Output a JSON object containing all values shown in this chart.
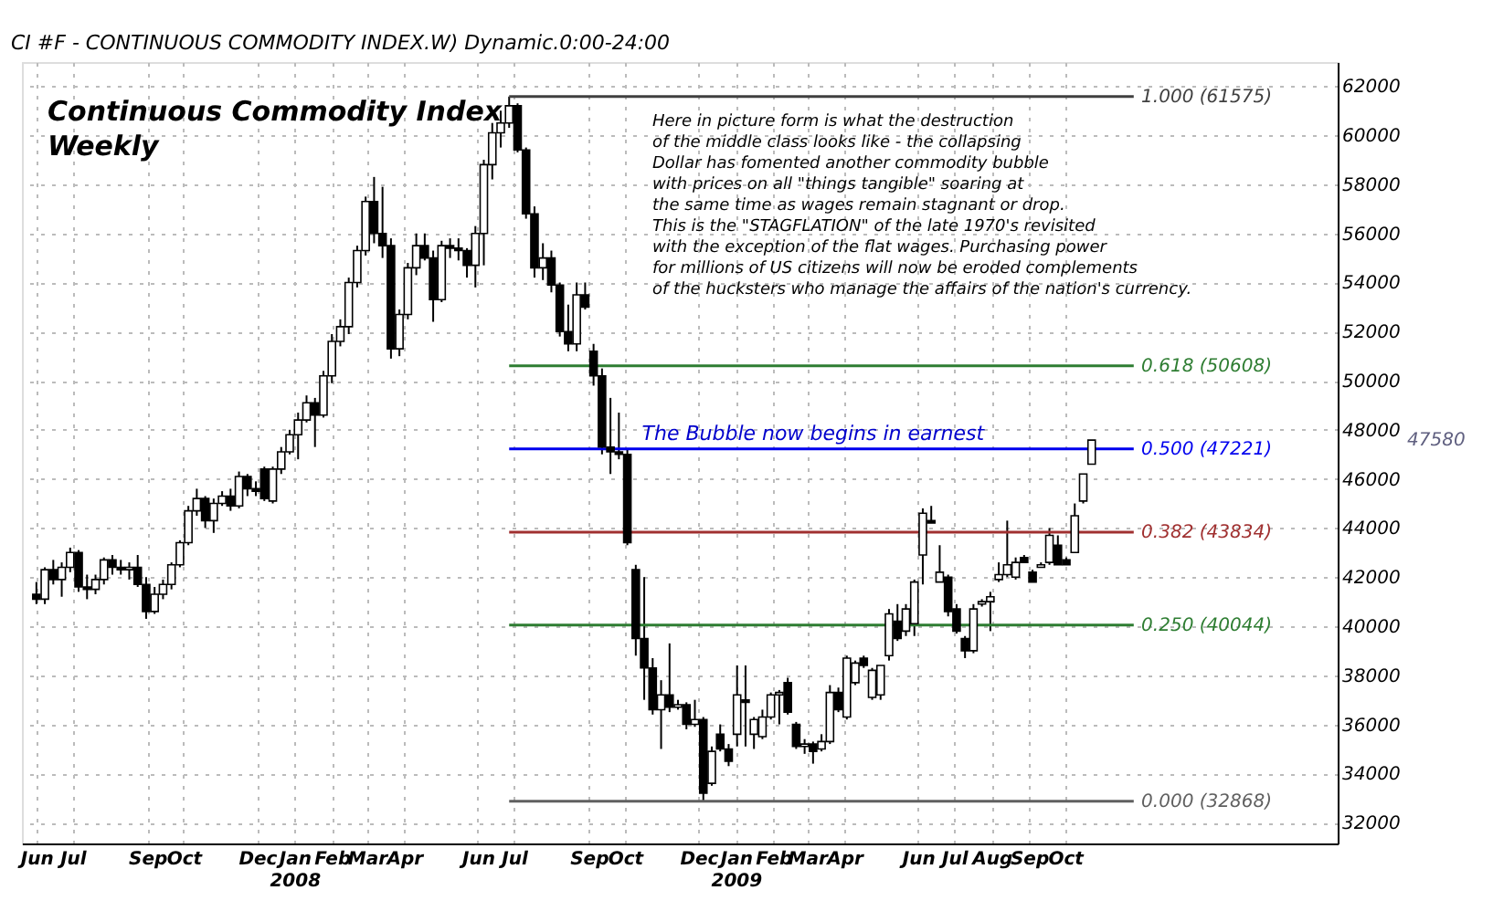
{
  "chart_data": {
    "type": "candlestick",
    "title": "Continuous Commodity Index",
    "subtitle": "Weekly",
    "x": [
      "2007-06-01",
      "2007-06-08",
      "2007-06-15",
      "2007-06-22",
      "2007-06-29",
      "2007-07-06",
      "2007-07-13",
      "2007-07-20",
      "2007-07-27",
      "2007-08-03",
      "2007-08-10",
      "2007-08-17",
      "2007-08-24",
      "2007-08-31",
      "2007-09-07",
      "2007-09-14",
      "2007-09-21",
      "2007-09-28",
      "2007-10-05",
      "2007-10-12",
      "2007-10-19",
      "2007-10-26",
      "2007-11-02",
      "2007-11-09",
      "2007-11-16",
      "2007-11-23",
      "2007-11-30",
      "2007-12-07",
      "2007-12-14",
      "2007-12-21",
      "2007-12-28",
      "2008-01-04",
      "2008-01-11",
      "2008-01-18",
      "2008-01-25",
      "2008-02-01",
      "2008-02-08",
      "2008-02-15",
      "2008-02-22",
      "2008-02-29",
      "2008-03-07",
      "2008-03-14",
      "2008-03-21",
      "2008-03-28",
      "2008-04-04",
      "2008-04-11",
      "2008-04-18",
      "2008-04-25",
      "2008-05-02",
      "2008-05-09",
      "2008-05-16",
      "2008-05-23",
      "2008-05-30",
      "2008-06-06",
      "2008-06-13",
      "2008-06-20",
      "2008-06-27",
      "2008-07-04",
      "2008-07-11",
      "2008-07-18",
      "2008-07-25",
      "2008-08-01",
      "2008-08-08",
      "2008-08-15",
      "2008-08-22",
      "2008-08-29",
      "2008-09-05",
      "2008-09-12",
      "2008-09-19",
      "2008-09-26",
      "2008-10-03",
      "2008-10-10",
      "2008-10-17",
      "2008-10-24",
      "2008-10-31",
      "2008-11-07",
      "2008-11-14",
      "2008-11-21",
      "2008-11-28",
      "2008-12-05",
      "2008-12-12",
      "2008-12-19",
      "2008-12-26",
      "2009-01-02",
      "2009-01-09",
      "2009-01-16",
      "2009-01-23",
      "2009-01-30",
      "2009-02-06",
      "2009-02-13",
      "2009-02-20",
      "2009-02-27",
      "2009-03-06",
      "2009-03-13",
      "2009-03-20",
      "2009-03-27",
      "2009-04-03",
      "2009-04-10",
      "2009-04-17",
      "2009-04-24",
      "2009-05-01",
      "2009-05-08",
      "2009-05-15",
      "2009-05-22",
      "2009-05-29",
      "2009-06-05",
      "2009-06-12",
      "2009-06-19",
      "2009-06-26",
      "2009-07-03",
      "2009-07-10",
      "2009-07-17",
      "2009-07-24",
      "2009-07-31",
      "2009-08-07",
      "2009-08-14",
      "2009-08-21",
      "2009-08-28",
      "2009-09-04",
      "2009-09-11",
      "2009-09-18",
      "2009-09-25",
      "2009-10-02",
      "2009-10-09",
      "2009-10-16",
      "2009-10-23"
    ],
    "ohlc": [
      [
        41300,
        41800,
        40900,
        41100
      ],
      [
        41100,
        42400,
        40900,
        42300
      ],
      [
        42300,
        42700,
        41700,
        41900
      ],
      [
        41900,
        42600,
        41200,
        42400
      ],
      [
        42400,
        43200,
        42200,
        43000
      ],
      [
        43000,
        43100,
        41400,
        41600
      ],
      [
        41600,
        42100,
        41100,
        41500
      ],
      [
        41500,
        42100,
        41300,
        41900
      ],
      [
        41900,
        42800,
        41700,
        42700
      ],
      [
        42700,
        42900,
        42100,
        42400
      ],
      [
        42400,
        42700,
        42100,
        42300
      ],
      [
        42300,
        42600,
        41900,
        42400
      ],
      [
        42400,
        42900,
        41600,
        41700
      ],
      [
        41700,
        42000,
        40300,
        40600
      ],
      [
        40600,
        41600,
        40500,
        41300
      ],
      [
        41300,
        41900,
        41100,
        41700
      ],
      [
        41700,
        42600,
        41500,
        42500
      ],
      [
        42500,
        43500,
        42400,
        43400
      ],
      [
        43400,
        44900,
        43300,
        44700
      ],
      [
        44700,
        45600,
        44500,
        45200
      ],
      [
        45200,
        45300,
        44000,
        44300
      ],
      [
        44300,
        45200,
        43800,
        45000
      ],
      [
        45000,
        45500,
        44900,
        45300
      ],
      [
        45300,
        45600,
        44700,
        44900
      ],
      [
        44900,
        46300,
        44800,
        46100
      ],
      [
        46100,
        46200,
        45300,
        45600
      ],
      [
        45600,
        45900,
        45300,
        45500
      ],
      [
        46400,
        46500,
        45100,
        45200
      ],
      [
        45100,
        46500,
        45000,
        46400
      ],
      [
        46400,
        47300,
        46200,
        47100
      ],
      [
        47100,
        48000,
        47000,
        47800
      ],
      [
        47800,
        48700,
        46800,
        48400
      ],
      [
        48400,
        49400,
        48300,
        49100
      ],
      [
        49100,
        49300,
        47300,
        48600
      ],
      [
        48600,
        50400,
        48500,
        50200
      ],
      [
        50200,
        51900,
        49900,
        51600
      ],
      [
        51600,
        52500,
        51400,
        52200
      ],
      [
        52200,
        54200,
        51900,
        54000
      ],
      [
        54000,
        55500,
        53800,
        55300
      ],
      [
        55300,
        57500,
        55100,
        57300
      ],
      [
        57300,
        58300,
        55600,
        56000
      ],
      [
        56000,
        57900,
        55000,
        55500
      ],
      [
        55500,
        55800,
        50900,
        51300
      ],
      [
        51300,
        52900,
        51000,
        52700
      ],
      [
        52700,
        54800,
        52500,
        54600
      ],
      [
        54600,
        56000,
        54300,
        55500
      ],
      [
        55500,
        56000,
        54900,
        55000
      ],
      [
        55000,
        55300,
        52400,
        53300
      ],
      [
        53300,
        55700,
        53200,
        55500
      ],
      [
        55500,
        55800,
        55000,
        55400
      ],
      [
        55400,
        55800,
        54900,
        55300
      ],
      [
        55300,
        55400,
        54200,
        54700
      ],
      [
        54700,
        56300,
        53800,
        56000
      ],
      [
        56000,
        59000,
        54700,
        58800
      ],
      [
        58800,
        60500,
        58200,
        60100
      ],
      [
        60100,
        61000,
        59500,
        60500
      ],
      [
        60500,
        61575,
        60300,
        61200
      ],
      [
        61200,
        61300,
        59300,
        59400
      ],
      [
        59400,
        59500,
        56600,
        56800
      ],
      [
        56800,
        57100,
        54200,
        54600
      ],
      [
        54600,
        55600,
        54100,
        55000
      ],
      [
        55000,
        55300,
        53600,
        53900
      ],
      [
        53900,
        54000,
        51800,
        52000
      ],
      [
        52000,
        53100,
        51200,
        51500
      ],
      [
        51500,
        54000,
        51200,
        53500
      ],
      [
        53500,
        54000,
        52900,
        53000
      ],
      [
        51200,
        51500,
        49800,
        50200
      ],
      [
        50200,
        50500,
        47000,
        47300
      ],
      [
        47300,
        49300,
        46200,
        47100
      ],
      [
        47100,
        48700,
        46800,
        47000
      ],
      [
        47000,
        47200,
        43300,
        43400
      ],
      [
        42300,
        42500,
        38800,
        39500
      ],
      [
        39500,
        42000,
        37000,
        38300
      ],
      [
        38300,
        38700,
        36400,
        36600
      ],
      [
        36600,
        37800,
        35000,
        37200
      ],
      [
        37200,
        39300,
        36500,
        36700
      ],
      [
        36700,
        37000,
        36600,
        36800
      ],
      [
        36800,
        36900,
        35800,
        36000
      ],
      [
        36000,
        37000,
        35900,
        36200
      ],
      [
        36200,
        36300,
        32868,
        33200
      ],
      [
        33600,
        35100,
        33500,
        34900
      ],
      [
        35600,
        36000,
        34900,
        35000
      ],
      [
        35000,
        35200,
        34300,
        34500
      ],
      [
        35600,
        38400,
        35100,
        37200
      ],
      [
        37000,
        38400,
        35100,
        36900
      ],
      [
        35600,
        36300,
        35000,
        36200
      ],
      [
        35500,
        36600,
        35400,
        36300
      ],
      [
        36300,
        37300,
        36200,
        37200
      ],
      [
        37200,
        37400,
        36000,
        37300
      ],
      [
        37700,
        37900,
        36400,
        36500
      ],
      [
        36000,
        36100,
        35000,
        35100
      ],
      [
        35100,
        35400,
        34800,
        35200
      ],
      [
        35200,
        35300,
        34400,
        34900
      ],
      [
        35000,
        35600,
        34900,
        35300
      ],
      [
        35300,
        37600,
        35200,
        37300
      ],
      [
        37300,
        37500,
        36500,
        36600
      ],
      [
        36300,
        38800,
        36200,
        38700
      ],
      [
        37700,
        38600,
        37600,
        38500
      ],
      [
        38700,
        38800,
        38300,
        38400
      ],
      [
        37100,
        38300,
        37000,
        38200
      ],
      [
        37200,
        38400,
        37000,
        38400
      ],
      [
        38800,
        40700,
        38600,
        40500
      ],
      [
        40200,
        40900,
        39400,
        39500
      ],
      [
        39800,
        40900,
        39600,
        40700
      ],
      [
        40100,
        41900,
        39600,
        41800
      ],
      [
        42900,
        44800,
        41700,
        44600
      ],
      [
        44300,
        44900,
        44200,
        44200
      ],
      [
        41800,
        43300,
        41800,
        42200
      ],
      [
        42000,
        42100,
        40400,
        40600
      ],
      [
        40700,
        40900,
        39700,
        39800
      ],
      [
        39500,
        39600,
        38700,
        39000
      ],
      [
        39000,
        40900,
        38900,
        40700
      ],
      [
        40900,
        41100,
        40800,
        41000
      ],
      [
        41000,
        41400,
        39800,
        41200
      ],
      [
        41900,
        42600,
        41800,
        42100
      ],
      [
        42100,
        44300,
        42000,
        42500
      ],
      [
        42000,
        42800,
        41900,
        42600
      ],
      [
        42800,
        42900,
        42600,
        42600
      ],
      [
        42200,
        42300,
        41800,
        41800
      ],
      [
        42400,
        42600,
        42400,
        42500
      ],
      [
        42600,
        44000,
        42500,
        43700
      ],
      [
        43300,
        43700,
        42500,
        42500
      ],
      [
        42700,
        42800,
        42500,
        42500
      ],
      [
        43000,
        45000,
        43000,
        44500
      ],
      [
        45100,
        46200,
        45000,
        46200
      ],
      [
        46600,
        47580,
        46600,
        47580
      ]
    ],
    "xlim": [
      "2007-05-20",
      "2010-05-15"
    ],
    "xticks": [
      {
        "value": "2007-06-01",
        "label": "Jun"
      },
      {
        "value": "2007-07-01",
        "label": "Jul"
      },
      {
        "value": "2007-09-01",
        "label": "Sep"
      },
      {
        "value": "2007-10-01",
        "label": "Oct"
      },
      {
        "value": "2007-12-01",
        "label": "Dec"
      },
      {
        "value": "2008-01-01",
        "label": "Jan\n2008"
      },
      {
        "value": "2008-02-01",
        "label": "Feb"
      },
      {
        "value": "2008-03-01",
        "label": "Mar"
      },
      {
        "value": "2008-04-01",
        "label": "Apr"
      },
      {
        "value": "2008-06-01",
        "label": "Jun"
      },
      {
        "value": "2008-07-01",
        "label": "Jul"
      },
      {
        "value": "2008-09-01",
        "label": "Sep"
      },
      {
        "value": "2008-10-01",
        "label": "Oct"
      },
      {
        "value": "2008-12-01",
        "label": "Dec"
      },
      {
        "value": "2009-01-01",
        "label": "Jan\n2009"
      },
      {
        "value": "2009-02-01",
        "label": "Feb"
      },
      {
        "value": "2009-03-01",
        "label": "Mar"
      },
      {
        "value": "2009-04-01",
        "label": "Apr"
      },
      {
        "value": "2009-06-01",
        "label": "Jun"
      },
      {
        "value": "2009-07-01",
        "label": "Jul"
      },
      {
        "value": "2009-08-01",
        "label": "Aug"
      },
      {
        "value": "2009-09-01",
        "label": "Sep"
      },
      {
        "value": "2009-10-01",
        "label": "Oct"
      }
    ],
    "ylim": [
      31150,
      62980
    ],
    "yticks": [
      32000,
      34000,
      36000,
      38000,
      40000,
      42000,
      44000,
      46000,
      48000,
      50000,
      52000,
      54000,
      56000,
      58000,
      60000,
      62000
    ],
    "grid": true,
    "ref_lines": [
      {
        "axis": "y",
        "value": 61575,
        "label": "1.000 (61575)",
        "color": "#404040"
      },
      {
        "axis": "y",
        "value": 50608,
        "label": "0.618 (50608)",
        "color": "#2e7d32"
      },
      {
        "axis": "y",
        "value": 47221,
        "label": "0.500 (47221)",
        "color": "#0000ee"
      },
      {
        "axis": "y",
        "value": 43834,
        "label": "0.382 (43834)",
        "color": "#a03030"
      },
      {
        "axis": "y",
        "value": 40044,
        "label": "0.250 (40044)",
        "color": "#2e7d32"
      },
      {
        "axis": "y",
        "value": 32868,
        "label": "0.000 (32868)",
        "color": "#606060"
      }
    ],
    "annotations": [
      "CI #F - CONTINUOUS COMMODITY INDEX.W) Dynamic.0:00-24:00",
      "Here in picture form is what the destruction\nof the middle class looks like  - the collapsing\nDollar has fomented another commodity bubble\nwith prices on all \"things tangible\" soaring at\nthe same time as wages remain stagnant or drop.\nThis  is the \"STAGFLATION\" of the late 1970's revisited\nwith the exception of the flat wages. Purchasing power\nfor millions of US citizens will now be eroded complements\nof the hucksters who manage the affairs of the nation's currency.",
      {
        "text": "The Bubble now begins in earnest",
        "x": "2009-03-06",
        "y": 47221
      },
      "47580"
    ]
  }
}
